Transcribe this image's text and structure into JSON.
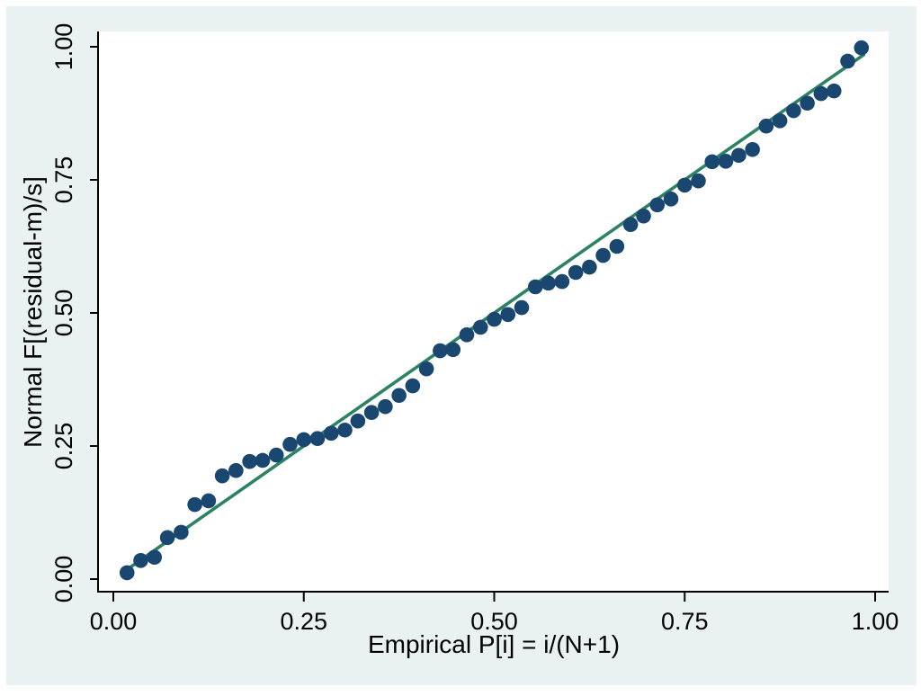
{
  "figure": {
    "background_color": "#eaf1f3",
    "plot_background_color": "#ffffff",
    "axis_color": "#000000",
    "text_color": "#000000"
  },
  "chart_data": {
    "type": "scatter",
    "title": "",
    "xlabel": "Empirical P[i] = i/(N+1)",
    "ylabel": "Normal F[(residual-m)/s]",
    "xlim": [
      0,
      1
    ],
    "ylim": [
      0,
      1
    ],
    "grid": false,
    "legend": "none",
    "x_tick_labels": [
      "0.00",
      "0.25",
      "0.50",
      "0.75",
      "1.00"
    ],
    "y_tick_labels": [
      "0.00",
      "0.25",
      "0.50",
      "0.75",
      "1.00"
    ],
    "x_tick_values": [
      0,
      0.25,
      0.5,
      0.75,
      1
    ],
    "y_tick_values": [
      0,
      0.25,
      0.5,
      0.75,
      1
    ],
    "marker_color": "#1a476f",
    "reference_line_color": "#2e8264",
    "series": [
      {
        "name": "normal-probability-points",
        "type": "scatter",
        "x": [
          0.018,
          0.036,
          0.054,
          0.071,
          0.089,
          0.107,
          0.125,
          0.143,
          0.161,
          0.179,
          0.196,
          0.214,
          0.232,
          0.25,
          0.268,
          0.286,
          0.304,
          0.321,
          0.339,
          0.357,
          0.375,
          0.393,
          0.411,
          0.429,
          0.446,
          0.464,
          0.482,
          0.5,
          0.518,
          0.536,
          0.554,
          0.571,
          0.589,
          0.607,
          0.625,
          0.643,
          0.661,
          0.679,
          0.696,
          0.714,
          0.732,
          0.75,
          0.768,
          0.786,
          0.804,
          0.821,
          0.839,
          0.857,
          0.875,
          0.893,
          0.911,
          0.929,
          0.946,
          0.964,
          0.982
        ],
        "y": [
          0.012,
          0.035,
          0.041,
          0.078,
          0.088,
          0.14,
          0.147,
          0.194,
          0.204,
          0.221,
          0.223,
          0.233,
          0.253,
          0.262,
          0.264,
          0.274,
          0.28,
          0.297,
          0.313,
          0.324,
          0.345,
          0.363,
          0.395,
          0.429,
          0.431,
          0.459,
          0.473,
          0.488,
          0.497,
          0.51,
          0.549,
          0.556,
          0.559,
          0.576,
          0.586,
          0.608,
          0.625,
          0.666,
          0.682,
          0.703,
          0.714,
          0.74,
          0.748,
          0.784,
          0.785,
          0.796,
          0.807,
          0.851,
          0.861,
          0.88,
          0.894,
          0.912,
          0.917,
          0.973,
          0.998
        ]
      },
      {
        "name": "diagonal-reference-line",
        "type": "line",
        "x": [
          0.015,
          0.985
        ],
        "y": [
          0.015,
          0.985
        ]
      }
    ]
  }
}
